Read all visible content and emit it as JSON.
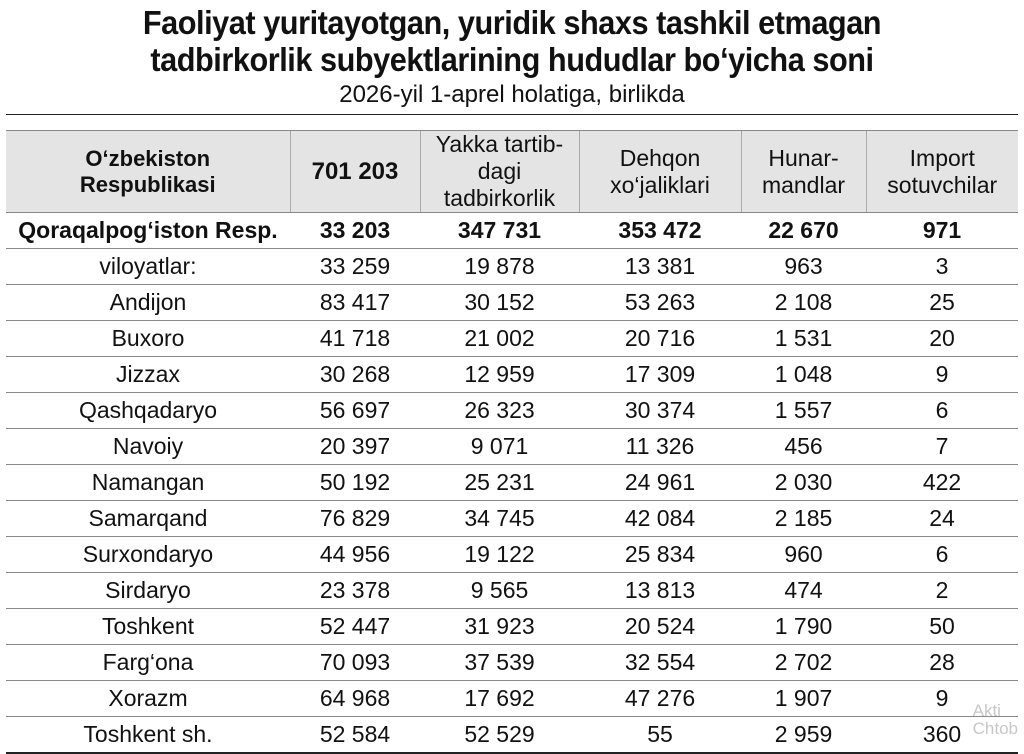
{
  "title": {
    "line1": "Faoliyat yuritayotgan, yuridik shaxs tashkil etmagan",
    "line2": "tadbirkorlik subyektlarining hududlar bo‘yicha soni"
  },
  "subtitle": "2026-yil 1-aprel holatiga, birlikda",
  "table": {
    "header": {
      "region_line1": "O‘zbekiston",
      "region_line2": "Respublikasi",
      "total": "701 203",
      "col2_line1": "Yakka tartib-",
      "col2_line2": "dagi tadbirkorlik",
      "col3_line1": "Dehqon",
      "col3_line2": "xo‘jaliklari",
      "col4_line1": "Hunar-",
      "col4_line2": "mandlar",
      "col5_line1": "Import",
      "col5_line2": "sotuvchilar"
    },
    "rows": [
      {
        "region": "Qoraqalpog‘iston Resp.",
        "total": "33 203",
        "individual": "347 731",
        "dehqon": "353 472",
        "artisans": "22 670",
        "importers": "971"
      },
      {
        "region": "viloyatlar:",
        "total": "33 259",
        "individual": "19 878",
        "dehqon": "13 381",
        "artisans": "963",
        "importers": "3"
      },
      {
        "region": "Andijon",
        "total": "83 417",
        "individual": "30 152",
        "dehqon": "53 263",
        "artisans": "2 108",
        "importers": "25"
      },
      {
        "region": "Buxoro",
        "total": "41 718",
        "individual": "21 002",
        "dehqon": "20 716",
        "artisans": "1 531",
        "importers": "20"
      },
      {
        "region": "Jizzax",
        "total": "30 268",
        "individual": "12 959",
        "dehqon": "17 309",
        "artisans": "1 048",
        "importers": "9"
      },
      {
        "region": "Qashqadaryo",
        "total": "56 697",
        "individual": "26 323",
        "dehqon": "30 374",
        "artisans": "1 557",
        "importers": "6"
      },
      {
        "region": "Navoiy",
        "total": "20 397",
        "individual": "9 071",
        "dehqon": "11 326",
        "artisans": "456",
        "importers": "7"
      },
      {
        "region": "Namangan",
        "total": "50 192",
        "individual": "25 231",
        "dehqon": "24 961",
        "artisans": "2 030",
        "importers": "422"
      },
      {
        "region": "Samarqand",
        "total": "76 829",
        "individual": "34 745",
        "dehqon": "42 084",
        "artisans": "2 185",
        "importers": "24"
      },
      {
        "region": "Surxondaryo",
        "total": "44 956",
        "individual": "19 122",
        "dehqon": "25 834",
        "artisans": "960",
        "importers": "6"
      },
      {
        "region": "Sirdaryo",
        "total": "23 378",
        "individual": "9 565",
        "dehqon": "13 813",
        "artisans": "474",
        "importers": "2"
      },
      {
        "region": "Toshkent",
        "total": "52 447",
        "individual": "31 923",
        "dehqon": "20 524",
        "artisans": "1 790",
        "importers": "50"
      },
      {
        "region": "Farg‘ona",
        "total": "70 093",
        "individual": "37 539",
        "dehqon": "32 554",
        "artisans": "2 702",
        "importers": "28"
      },
      {
        "region": "Xorazm",
        "total": "64 968",
        "individual": "17 692",
        "dehqon": "47 276",
        "artisans": "1 907",
        "importers": "9"
      },
      {
        "region": "Toshkent sh.",
        "total": "52 584",
        "individual": "52 529",
        "dehqon": "55",
        "artisans": "2 959",
        "importers": "360"
      }
    ]
  },
  "watermark": {
    "line1": "Akti",
    "line2": "Chtob"
  }
}
